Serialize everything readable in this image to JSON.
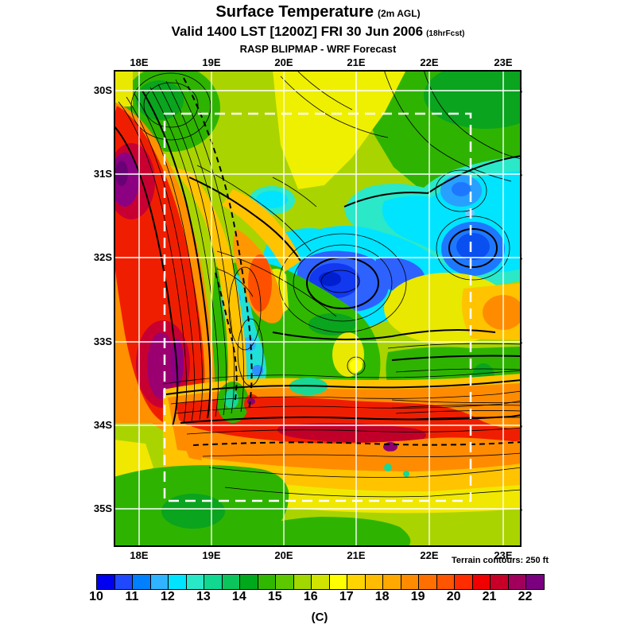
{
  "title": {
    "main": "Surface Temperature",
    "main_suffix": "(2m AGL)",
    "valid": "Valid 1400 LST [1200Z] FRI 30 Jun 2006",
    "valid_suffix": "(18hrFcst)",
    "model": "RASP BLIPMAP - WRF Forecast"
  },
  "axes": {
    "lon": [
      "18E",
      "19E",
      "20E",
      "21E",
      "22E",
      "23E"
    ],
    "lat": [
      "30S",
      "31S",
      "32S",
      "33S",
      "34S",
      "35S"
    ]
  },
  "footer": {
    "terrain_note": "Terrain contours: 250 ft",
    "unit": "(C)"
  },
  "colorbar": {
    "tick_labels": [
      "10",
      "11",
      "12",
      "13",
      "14",
      "15",
      "16",
      "17",
      "18",
      "19",
      "20",
      "21",
      "22"
    ],
    "min": 10,
    "max": 22.5,
    "step": 0.5,
    "colors": [
      "#0000f0",
      "#2048ff",
      "#0080ff",
      "#30b4ff",
      "#00e4ff",
      "#28e8c8",
      "#10d890",
      "#0cc45c",
      "#00a81c",
      "#30b800",
      "#5cc800",
      "#a0d800",
      "#d0e400",
      "#ffff00",
      "#ffd400",
      "#ffbc00",
      "#ffa800",
      "#ff8c00",
      "#ff7000",
      "#ff5400",
      "#ff2c00",
      "#f00000",
      "#c80028",
      "#a0005c",
      "#7a0080"
    ]
  },
  "chart_data": {
    "type": "heatmap",
    "title": "Surface Temperature (2m AGL)",
    "x_ticks": [
      "18E",
      "19E",
      "20E",
      "21E",
      "22E",
      "23E"
    ],
    "y_ticks": [
      "30S",
      "31S",
      "32S",
      "33S",
      "34S",
      "35S"
    ],
    "legend_values_c": [
      10,
      11,
      12,
      13,
      14,
      15,
      16,
      17,
      18,
      19,
      20,
      21,
      22
    ],
    "annotations": [
      "white dashed inner model-domain box",
      "white lat/lon grid",
      "black terrain contours every 250 ft"
    ],
    "features": [
      {
        "name": "hot west-coast band",
        "approx": "18E-19E from 30.5S to 34S",
        "color": "red with purple cores 22C+"
      },
      {
        "name": "cold central valley pool",
        "approx": "20E-21.5E near 32S",
        "color": "blue 10-11C"
      },
      {
        "name": "cold northeast region",
        "approx": "22E-23E 31S-32S",
        "color": "cyan/blue 11-13C"
      },
      {
        "name": "hot south-coast band",
        "approx": "19E-23E near 34S",
        "color": "red 20-22C"
      },
      {
        "name": "mild green plains",
        "approx": "elsewhere",
        "color": "green/yellow-green 14-16C"
      }
    ]
  }
}
